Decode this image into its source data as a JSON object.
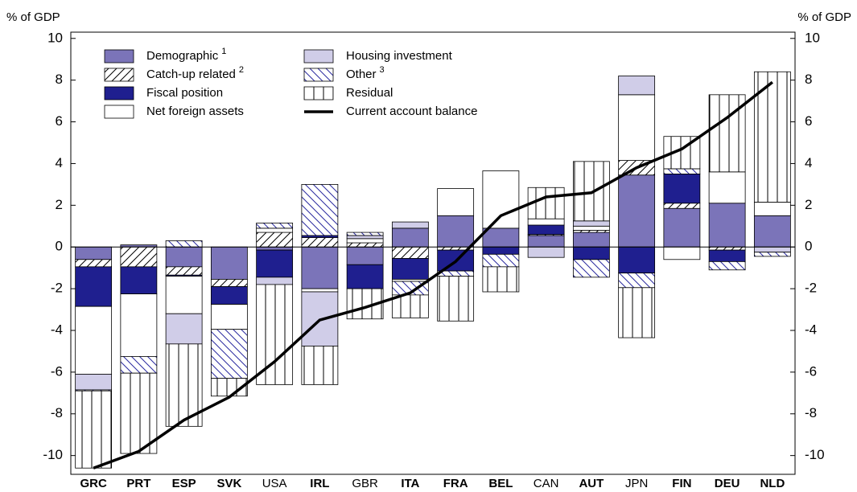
{
  "chart_data": {
    "type": "bar",
    "stacked": true,
    "y_label": "% of GDP",
    "y2_label": "% of GDP",
    "ylim": [
      -10.9,
      10.3
    ],
    "yticks": [
      -10,
      -8,
      -6,
      -4,
      -2,
      0,
      2,
      4,
      6,
      8,
      10
    ],
    "y2lim": [
      -10.9,
      10.3
    ],
    "y2ticks": [
      -10,
      -8,
      -6,
      -4,
      -2,
      0,
      2,
      4,
      6,
      8,
      10
    ],
    "categories": [
      "GRC",
      "PRT",
      "ESP",
      "SVK",
      "USA",
      "IRL",
      "GBR",
      "ITA",
      "FRA",
      "BEL",
      "CAN",
      "AUT",
      "JPN",
      "FIN",
      "DEU",
      "NLD"
    ],
    "categories_bold": [
      true,
      true,
      true,
      true,
      false,
      true,
      false,
      true,
      true,
      true,
      false,
      true,
      false,
      true,
      true,
      true
    ],
    "series": [
      {
        "name": "Demographic",
        "footnote": "1",
        "color": "#7b74b9",
        "pattern": "solid",
        "values": [
          -0.6,
          0.1,
          -0.95,
          -1.55,
          -0.15,
          -2.0,
          -0.85,
          0.9,
          1.5,
          0.9,
          0.55,
          0.7,
          3.45,
          1.85,
          2.1,
          1.5
        ]
      },
      {
        "name": "Catch-up related",
        "footnote": "2",
        "color": "#000000",
        "pattern": "forward",
        "values": [
          -0.35,
          -0.95,
          -0.4,
          -0.35,
          0.7,
          0.45,
          0.2,
          -0.55,
          -0.15,
          0,
          0.05,
          0.1,
          0.7,
          0.25,
          -0.15,
          0
        ]
      },
      {
        "name": "Fiscal position",
        "color": "#1f1f8f",
        "pattern": "solid",
        "values": [
          -1.9,
          -1.3,
          -0.05,
          -0.85,
          -1.3,
          0.1,
          -1.15,
          -1.0,
          -1.0,
          -0.35,
          0.45,
          -0.6,
          -1.25,
          1.4,
          -0.55,
          0
        ]
      },
      {
        "name": "Net foreign assets",
        "color": "#ffffff",
        "pattern": "solid",
        "values": [
          -3.25,
          -3.0,
          -1.8,
          -1.2,
          0.2,
          -0.15,
          0.2,
          -0.1,
          1.3,
          2.75,
          0.3,
          0.2,
          3.15,
          -0.6,
          1.5,
          0.65
        ]
      },
      {
        "name": "Housing investment",
        "color": "#d0cde8",
        "pattern": "solid",
        "values": [
          -0.75,
          0,
          -1.45,
          0,
          -0.35,
          -2.6,
          0.15,
          0.3,
          0,
          0,
          -0.5,
          0.25,
          0.9,
          0,
          0,
          -0.25
        ]
      },
      {
        "name": "Other",
        "footnote": "3",
        "color": "#2a2aa0",
        "pattern": "back",
        "values": [
          -0.05,
          -0.8,
          0.3,
          -2.35,
          0.25,
          2.45,
          0.15,
          -0.65,
          -0.25,
          -0.6,
          0,
          -0.85,
          -0.7,
          0.25,
          -0.4,
          -0.2
        ]
      },
      {
        "name": "Residual",
        "color": "#000000",
        "pattern": "vertical",
        "values": [
          -3.7,
          -3.85,
          -3.95,
          -0.85,
          -4.8,
          -1.85,
          -1.45,
          -1.1,
          -2.15,
          -1.2,
          1.5,
          2.85,
          -2.4,
          1.55,
          3.7,
          6.25
        ]
      }
    ],
    "line": {
      "name": "Current account balance",
      "color": "#000000",
      "values": [
        -10.6,
        -9.8,
        -8.3,
        -7.2,
        -5.5,
        -3.5,
        -2.9,
        -2.2,
        -0.7,
        1.5,
        2.4,
        2.6,
        3.8,
        4.7,
        6.2,
        7.9
      ]
    }
  }
}
